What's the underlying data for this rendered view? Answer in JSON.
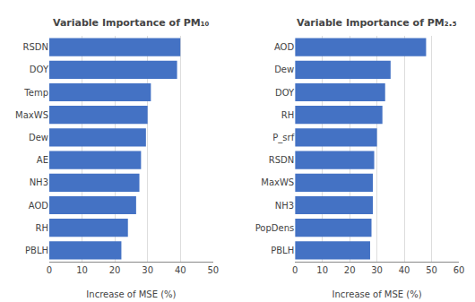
{
  "chart_data": [
    {
      "type": "bar",
      "orientation": "horizontal",
      "title": "Variable Importance of PM₁₀",
      "categories": [
        "RSDN",
        "DOY",
        "Temp",
        "MaxWS",
        "Dew",
        "AE",
        "NH3",
        "AOD",
        "RH",
        "PBLH"
      ],
      "values": [
        40,
        39,
        31,
        30,
        29.5,
        28,
        27.5,
        26.5,
        24,
        22
      ],
      "color": "#4472C4",
      "xlim": [
        0,
        50
      ],
      "xticks": [
        0,
        10,
        20,
        30,
        40,
        50
      ],
      "xlabel": "Increase of MSE (%)",
      "grid": true
    },
    {
      "type": "bar",
      "orientation": "horizontal",
      "title": "Variable Importance of PM₂.₅",
      "categories": [
        "AOD",
        "Dew",
        "DOY",
        "RH",
        "P_srf",
        "RSDN",
        "MaxWS",
        "NH3",
        "PopDens",
        "PBLH"
      ],
      "values": [
        48,
        35,
        33,
        32,
        30,
        29,
        28.5,
        28.5,
        28,
        27.5
      ],
      "color": "#4472C4",
      "xlim": [
        0,
        60
      ],
      "xticks": [
        0,
        10,
        20,
        30,
        40,
        50,
        60
      ],
      "xlabel": "Increase of MSE (%)",
      "grid": true
    }
  ]
}
